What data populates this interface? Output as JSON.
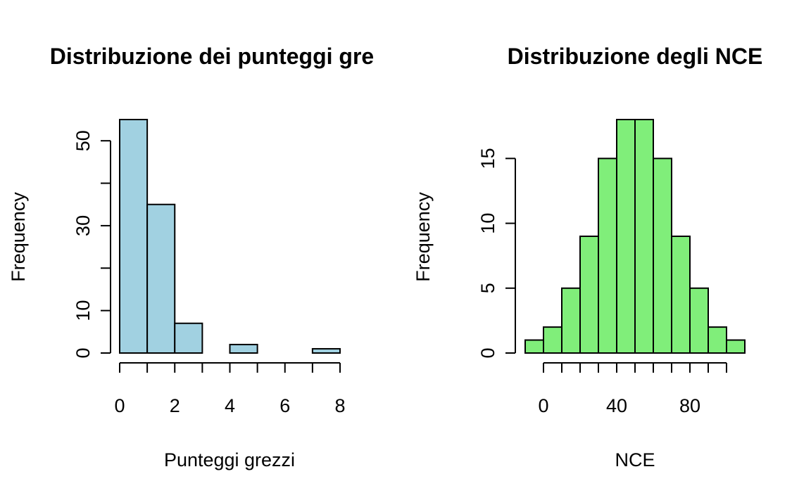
{
  "chart_data": [
    {
      "type": "bar",
      "subtype": "histogram",
      "title": "Distribuzione dei punteggi gre",
      "xlabel": "Punteggi grezzi",
      "ylabel": "Frequency",
      "bin_edges": [
        0,
        1,
        2,
        3,
        4,
        5,
        6,
        7,
        8
      ],
      "values": [
        55,
        35,
        7,
        0,
        2,
        0,
        0,
        1
      ],
      "xlim": [
        0,
        8
      ],
      "ylim": [
        0,
        55
      ],
      "x_ticks": [
        0,
        2,
        4,
        6,
        8
      ],
      "x_minor_ticks": [
        1,
        3,
        5,
        7
      ],
      "y_ticks": [
        0,
        10,
        20,
        30,
        40,
        50
      ],
      "y_tick_labels": [
        "0",
        "10",
        "",
        "30",
        "",
        "50"
      ],
      "bar_color": "#a1d1e1",
      "grid": false
    },
    {
      "type": "bar",
      "subtype": "histogram",
      "title": "Distribuzione degli NCE",
      "xlabel": "NCE",
      "ylabel": "Frequency",
      "bin_edges": [
        -10,
        0,
        10,
        20,
        30,
        40,
        50,
        60,
        70,
        80,
        90,
        100,
        110
      ],
      "values": [
        1,
        2,
        5,
        9,
        15,
        18,
        18,
        15,
        9,
        5,
        2,
        1
      ],
      "xlim": [
        0,
        100
      ],
      "ylim": [
        0,
        18
      ],
      "x_ticks": [
        0,
        20,
        40,
        60,
        80,
        100
      ],
      "x_tick_labels": [
        "0",
        "",
        "40",
        "",
        "80",
        ""
      ],
      "x_minor_ticks": [
        10,
        30,
        50,
        70,
        90
      ],
      "y_ticks": [
        0,
        5,
        10,
        15
      ],
      "bar_color": "#80ee7a",
      "grid": false
    }
  ]
}
